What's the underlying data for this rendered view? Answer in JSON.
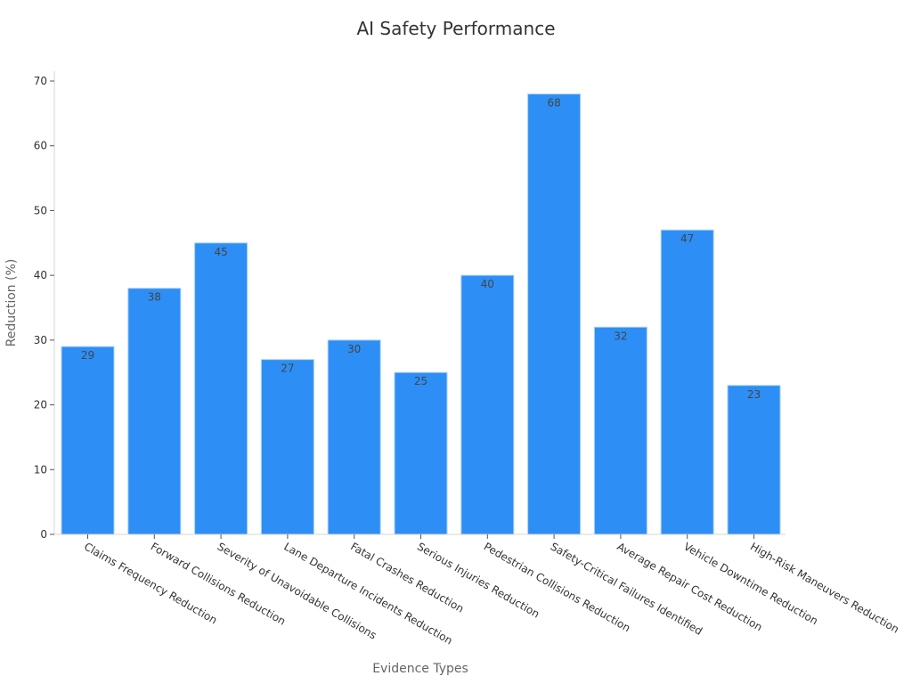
{
  "chart_data": {
    "type": "bar",
    "title": "AI Safety Performance",
    "xlabel": "Evidence Types",
    "ylabel": "Reduction (%)",
    "ylim": [
      0,
      70
    ],
    "yticks": [
      0,
      10,
      20,
      30,
      40,
      50,
      60,
      70
    ],
    "grid": false,
    "legend": null,
    "bar_color": "#2d8ff5",
    "bar_edge_color": "#a9d0fb",
    "categories": [
      "Claims Frequency Reduction",
      "Forward Collisions Reduction",
      "Severity of Unavoidable Collisions",
      "Lane Departure Incidents Reduction",
      "Fatal Crashes Reduction",
      "Serious Injuries Reduction",
      "Pedestrian Collisions Reduction",
      "Safety-Critical Failures Identified",
      "Average Repair Cost Reduction",
      "Vehicle Downtime Reduction",
      "High-Risk Maneuvers Reduction"
    ],
    "values": [
      29,
      38,
      45,
      27,
      30,
      25,
      40,
      68,
      32,
      47,
      23
    ]
  }
}
